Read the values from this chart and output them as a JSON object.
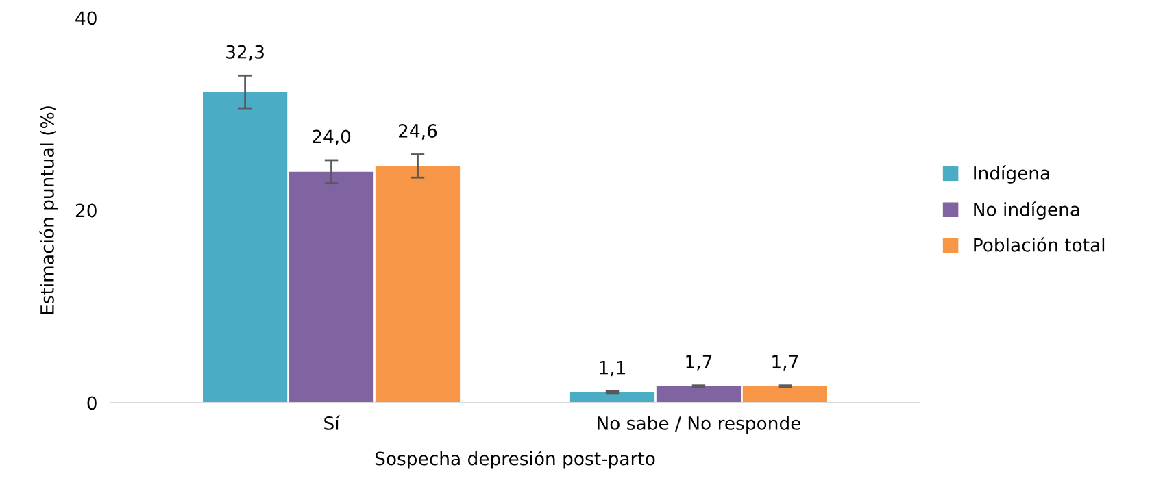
{
  "chart_data": {
    "type": "bar",
    "xlabel": "Sospecha depresión post-parto",
    "ylabel": "Estimación puntual (%)",
    "categories": [
      "Sí",
      "No sabe / No responde"
    ],
    "series": [
      {
        "name": "Indígena",
        "color": "#4bacc6",
        "values": [
          32.3,
          1.1
        ],
        "errors": [
          1.7,
          0.1
        ],
        "value_labels": [
          "32,3",
          "1,1"
        ]
      },
      {
        "name": "No indígena",
        "color": "#8064a2",
        "values": [
          24.0,
          1.7
        ],
        "errors": [
          1.2,
          0.1
        ],
        "value_labels": [
          "24,0",
          "1,7"
        ]
      },
      {
        "name": "Población total",
        "color": "#f79646",
        "values": [
          24.6,
          1.7
        ],
        "errors": [
          1.2,
          0.1
        ],
        "value_labels": [
          "24,6",
          "1,7"
        ]
      }
    ],
    "ylim": [
      0,
      40
    ],
    "yticks": [
      0,
      20,
      40
    ],
    "grid": false,
    "legend": "right"
  }
}
